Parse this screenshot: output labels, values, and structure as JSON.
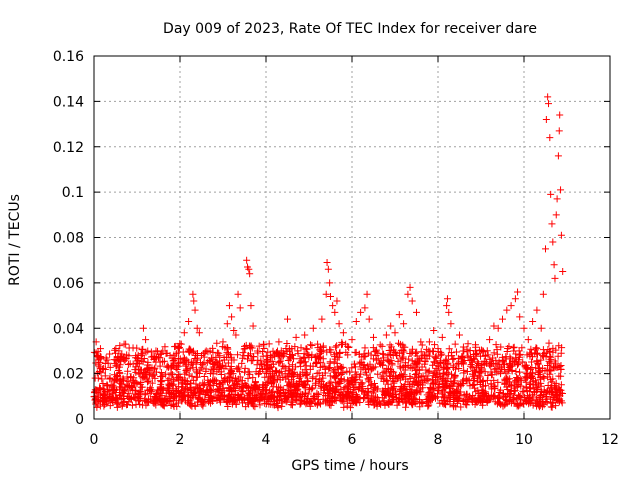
{
  "chart_data": {
    "type": "scatter",
    "title": "Day 009 of 2023, Rate Of TEC Index for receiver dare",
    "xlabel": "GPS time / hours",
    "ylabel": "ROTI / TECUs",
    "xlim": [
      0,
      12
    ],
    "ylim": [
      0,
      0.16
    ],
    "grid": true,
    "marker": "+",
    "color": "#ff0000",
    "x_ticks": [
      0,
      2,
      4,
      6,
      8,
      10,
      12
    ],
    "x_tick_labels": [
      "0",
      "2",
      "4",
      "6",
      "8",
      "10",
      "12"
    ],
    "y_ticks": [
      0,
      0.02,
      0.04,
      0.06,
      0.08,
      0.1,
      0.12,
      0.14,
      0.16
    ],
    "y_tick_labels": [
      "0",
      "0.02",
      "0.04",
      "0.06",
      "0.08",
      "0.1",
      "0.12",
      "0.14",
      "0.16"
    ],
    "series": [
      {
        "name": "ROTI",
        "points": [
          [
            0.02,
            0.012
          ],
          [
            0.05,
            0.034
          ],
          [
            0.08,
            0.028
          ],
          [
            0.1,
            0.018
          ],
          [
            0.15,
            0.031
          ],
          [
            0.2,
            0.022
          ],
          [
            0.3,
            0.026
          ],
          [
            0.4,
            0.015
          ],
          [
            0.5,
            0.029
          ],
          [
            0.6,
            0.02
          ],
          [
            0.7,
            0.033
          ],
          [
            0.8,
            0.024
          ],
          [
            0.9,
            0.017
          ],
          [
            1.0,
            0.027
          ],
          [
            1.1,
            0.014
          ],
          [
            1.15,
            0.04
          ],
          [
            1.2,
            0.035
          ],
          [
            1.25,
            0.03
          ],
          [
            1.4,
            0.022
          ],
          [
            1.5,
            0.027
          ],
          [
            1.6,
            0.019
          ],
          [
            1.7,
            0.029
          ],
          [
            1.8,
            0.023
          ],
          [
            1.9,
            0.032
          ],
          [
            2.0,
            0.025
          ],
          [
            2.1,
            0.038
          ],
          [
            2.2,
            0.043
          ],
          [
            2.3,
            0.055
          ],
          [
            2.32,
            0.052
          ],
          [
            2.35,
            0.048
          ],
          [
            2.4,
            0.04
          ],
          [
            2.45,
            0.038
          ],
          [
            2.5,
            0.028
          ],
          [
            2.6,
            0.021
          ],
          [
            2.7,
            0.03
          ],
          [
            2.8,
            0.024
          ],
          [
            2.9,
            0.029
          ],
          [
            3.0,
            0.034
          ],
          [
            3.1,
            0.042
          ],
          [
            3.15,
            0.05
          ],
          [
            3.2,
            0.045
          ],
          [
            3.25,
            0.039
          ],
          [
            3.3,
            0.037
          ],
          [
            3.35,
            0.055
          ],
          [
            3.4,
            0.049
          ],
          [
            3.5,
            0.032
          ],
          [
            3.55,
            0.07
          ],
          [
            3.57,
            0.067
          ],
          [
            3.6,
            0.066
          ],
          [
            3.62,
            0.064
          ],
          [
            3.65,
            0.05
          ],
          [
            3.7,
            0.041
          ],
          [
            3.8,
            0.03
          ],
          [
            3.9,
            0.024
          ],
          [
            4.0,
            0.022
          ],
          [
            4.1,
            0.028
          ],
          [
            4.2,
            0.019
          ],
          [
            4.3,
            0.034
          ],
          [
            4.4,
            0.029
          ],
          [
            4.5,
            0.044
          ],
          [
            4.6,
            0.031
          ],
          [
            4.7,
            0.036
          ],
          [
            4.8,
            0.025
          ],
          [
            4.9,
            0.037
          ],
          [
            5.0,
            0.028
          ],
          [
            5.1,
            0.04
          ],
          [
            5.2,
            0.033
          ],
          [
            5.3,
            0.044
          ],
          [
            5.4,
            0.055
          ],
          [
            5.42,
            0.069
          ],
          [
            5.45,
            0.066
          ],
          [
            5.48,
            0.06
          ],
          [
            5.5,
            0.054
          ],
          [
            5.55,
            0.05
          ],
          [
            5.6,
            0.047
          ],
          [
            5.65,
            0.052
          ],
          [
            5.7,
            0.042
          ],
          [
            5.8,
            0.038
          ],
          [
            5.9,
            0.032
          ],
          [
            6.0,
            0.035
          ],
          [
            6.1,
            0.043
          ],
          [
            6.2,
            0.047
          ],
          [
            6.3,
            0.049
          ],
          [
            6.35,
            0.055
          ],
          [
            6.4,
            0.044
          ],
          [
            6.5,
            0.036
          ],
          [
            6.6,
            0.029
          ],
          [
            6.7,
            0.032
          ],
          [
            6.8,
            0.037
          ],
          [
            6.9,
            0.041
          ],
          [
            7.0,
            0.038
          ],
          [
            7.1,
            0.046
          ],
          [
            7.2,
            0.042
          ],
          [
            7.3,
            0.055
          ],
          [
            7.35,
            0.058
          ],
          [
            7.4,
            0.052
          ],
          [
            7.5,
            0.047
          ],
          [
            7.6,
            0.034
          ],
          [
            7.7,
            0.028
          ],
          [
            7.8,
            0.034
          ],
          [
            7.9,
            0.039
          ],
          [
            8.0,
            0.031
          ],
          [
            8.1,
            0.036
          ],
          [
            8.2,
            0.05
          ],
          [
            8.22,
            0.053
          ],
          [
            8.25,
            0.047
          ],
          [
            8.3,
            0.042
          ],
          [
            8.4,
            0.033
          ],
          [
            8.5,
            0.037
          ],
          [
            8.6,
            0.03
          ],
          [
            8.7,
            0.027
          ],
          [
            8.8,
            0.025
          ],
          [
            8.9,
            0.029
          ],
          [
            9.0,
            0.022
          ],
          [
            9.1,
            0.028
          ],
          [
            9.2,
            0.035
          ],
          [
            9.3,
            0.041
          ],
          [
            9.4,
            0.04
          ],
          [
            9.5,
            0.044
          ],
          [
            9.6,
            0.048
          ],
          [
            9.7,
            0.05
          ],
          [
            9.8,
            0.053
          ],
          [
            9.85,
            0.056
          ],
          [
            9.9,
            0.045
          ],
          [
            10.0,
            0.04
          ],
          [
            10.1,
            0.035
          ],
          [
            10.2,
            0.043
          ],
          [
            10.3,
            0.048
          ],
          [
            10.4,
            0.04
          ],
          [
            10.45,
            0.055
          ],
          [
            10.5,
            0.075
          ],
          [
            10.52,
            0.132
          ],
          [
            10.55,
            0.142
          ],
          [
            10.57,
            0.139
          ],
          [
            10.6,
            0.124
          ],
          [
            10.62,
            0.099
          ],
          [
            10.65,
            0.086
          ],
          [
            10.67,
            0.078
          ],
          [
            10.7,
            0.068
          ],
          [
            10.72,
            0.062
          ],
          [
            10.75,
            0.09
          ],
          [
            10.77,
            0.097
          ],
          [
            10.8,
            0.116
          ],
          [
            10.82,
            0.127
          ],
          [
            10.83,
            0.134
          ],
          [
            10.85,
            0.101
          ],
          [
            10.87,
            0.081
          ],
          [
            10.9,
            0.065
          ]
        ]
      }
    ],
    "dense_band": {
      "x_start": 0,
      "x_end": 10.9,
      "typical_min": 0.005,
      "typical_max": 0.03
    }
  }
}
